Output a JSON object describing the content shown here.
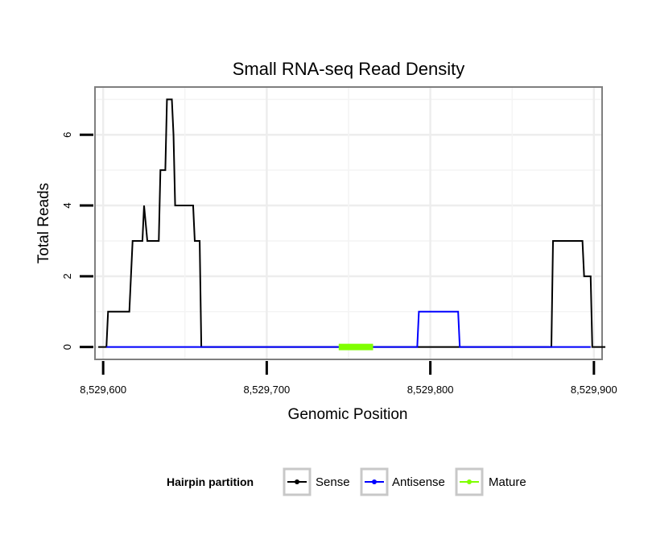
{
  "chart_data": {
    "type": "line",
    "title": "Small RNA-seq Read Density",
    "xlabel": "Genomic Position",
    "ylabel": "Total Reads",
    "xlim": [
      8529595,
      8529905
    ],
    "ylim": [
      -0.35,
      7.35
    ],
    "x_ticks": [
      8529600,
      8529700,
      8529800,
      8529900
    ],
    "x_tick_labels": [
      "8,529,600",
      "8,529,700",
      "8,529,800",
      "8,529,900"
    ],
    "y_ticks": [
      0,
      2,
      4,
      6
    ],
    "y_tick_labels": [
      "0",
      "2",
      "4",
      "6"
    ],
    "legend": {
      "title": "Hairpin partition",
      "position": "bottom",
      "entries": [
        "Sense",
        "Antisense",
        "Mature"
      ]
    },
    "series": [
      {
        "name": "Sense",
        "color": "#000000",
        "points": [
          [
            8529597,
            0
          ],
          [
            8529602,
            0
          ],
          [
            8529603,
            1
          ],
          [
            8529616,
            1
          ],
          [
            8529618,
            3
          ],
          [
            8529624,
            3
          ],
          [
            8529625,
            4
          ],
          [
            8529627,
            3
          ],
          [
            8529634,
            3
          ],
          [
            8529635,
            5
          ],
          [
            8529638,
            5
          ],
          [
            8529639,
            7
          ],
          [
            8529642,
            7
          ],
          [
            8529643,
            6
          ],
          [
            8529644,
            4
          ],
          [
            8529655,
            4
          ],
          [
            8529656,
            3
          ],
          [
            8529659,
            3
          ],
          [
            8529660,
            0
          ],
          [
            8529874,
            0
          ],
          [
            8529875,
            3
          ],
          [
            8529893,
            3
          ],
          [
            8529894,
            2
          ],
          [
            8529898,
            2
          ],
          [
            8529899,
            0
          ],
          [
            8529907,
            0
          ]
        ]
      },
      {
        "name": "Antisense",
        "color": "#0000ff",
        "points": [
          [
            8529602,
            0
          ],
          [
            8529660,
            0
          ],
          [
            8529792,
            0
          ],
          [
            8529793,
            1
          ],
          [
            8529817,
            1
          ],
          [
            8529818,
            0
          ],
          [
            8529874,
            0
          ],
          [
            8529898,
            0
          ]
        ]
      },
      {
        "name": "Mature",
        "color": "#7fff00",
        "points": [
          [
            8529744,
            0
          ],
          [
            8529765,
            0
          ]
        ]
      }
    ]
  }
}
